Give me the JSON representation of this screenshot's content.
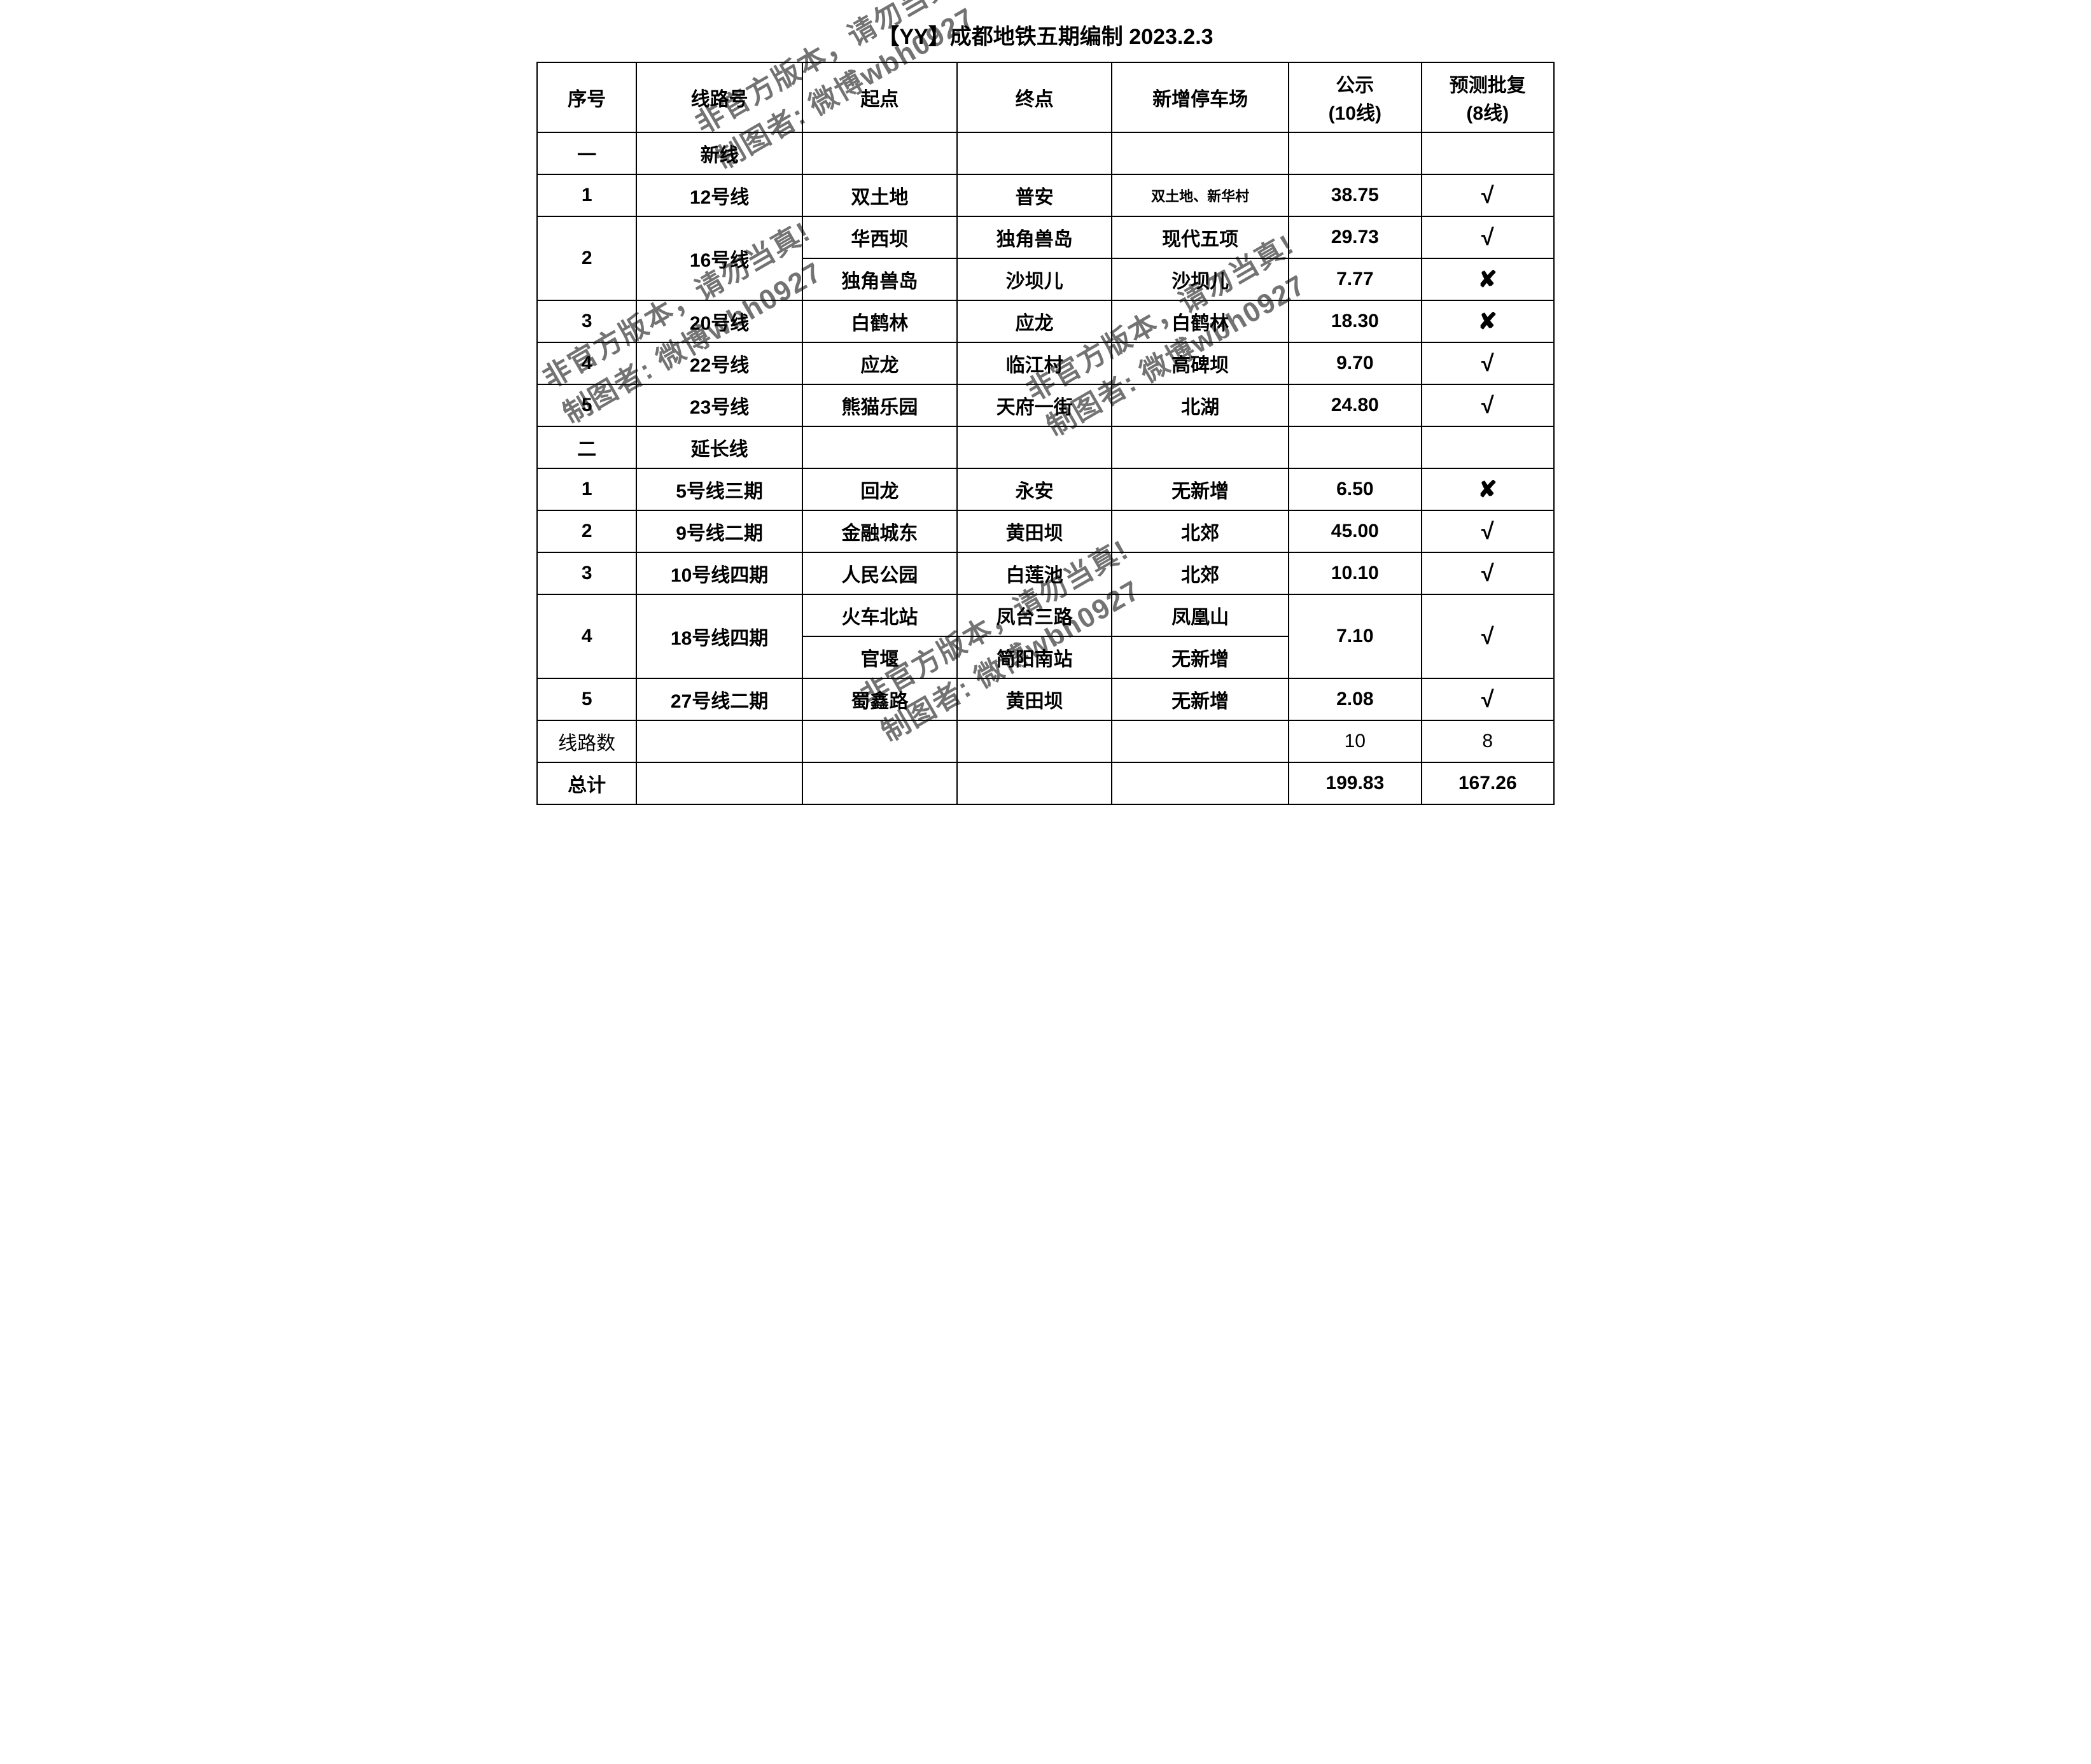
{
  "title": "【YY】成都地铁五期编制 2023.2.3",
  "columns": {
    "seq": "序号",
    "line": "线路号",
    "start": "起点",
    "end": "终点",
    "depot": "新增停车场",
    "public": "公示",
    "public_sub": "(10线)",
    "approve": "预测批复",
    "approve_sub": "(8线)"
  },
  "sections": {
    "one_seq": "一",
    "one_label": "新线",
    "two_seq": "二",
    "two_label": "延长线"
  },
  "rows_new": [
    {
      "seq": "1",
      "line": "12号线",
      "start": "双土地",
      "end": "普安",
      "depot": "双土地、新华村",
      "depot_small": true,
      "public": "38.75",
      "approve": "check"
    },
    {
      "seq": "2",
      "line": "16号线",
      "rowspan": 2,
      "start": "华西坝",
      "end": "独角兽岛",
      "depot": "现代五项",
      "public": "29.73",
      "approve": "check"
    },
    {
      "start": "独角兽岛",
      "end": "沙坝儿",
      "depot": "沙坝儿",
      "public": "7.77",
      "approve": "cross"
    },
    {
      "seq": "3",
      "line": "20号线",
      "start": "白鹤林",
      "end": "应龙",
      "depot": "白鹤林",
      "public": "18.30",
      "approve": "cross"
    },
    {
      "seq": "4",
      "line": "22号线",
      "start": "应龙",
      "end": "临江村",
      "depot": "高碑坝",
      "public": "9.70",
      "approve": "check"
    },
    {
      "seq": "5",
      "line": "23号线",
      "start": "熊猫乐园",
      "end": "天府一街",
      "depot": "北湖",
      "public": "24.80",
      "approve": "check"
    }
  ],
  "rows_ext": [
    {
      "seq": "1",
      "line": "5号线三期",
      "start": "回龙",
      "end": "永安",
      "depot": "无新增",
      "public": "6.50",
      "approve": "cross"
    },
    {
      "seq": "2",
      "line": "9号线二期",
      "start": "金融城东",
      "end": "黄田坝",
      "depot": "北郊",
      "public": "45.00",
      "approve": "check"
    },
    {
      "seq": "3",
      "line": "10号线四期",
      "start": "人民公园",
      "end": "白莲池",
      "depot": "北郊",
      "public": "10.10",
      "approve": "check"
    },
    {
      "seq": "4",
      "line": "18号线四期",
      "rowspan": 2,
      "start": "火车北站",
      "end": "凤台三路",
      "depot": "凤凰山",
      "public": "7.10",
      "public_rowspan": 2,
      "approve": "check",
      "approve_rowspan": 2
    },
    {
      "start": "官堰",
      "end": "简阳南站",
      "depot": "无新增"
    },
    {
      "seq": "5",
      "line": "27号线二期",
      "start": "蜀鑫路",
      "end": "黄田坝",
      "depot": "无新增",
      "public": "2.08",
      "approve": "check"
    }
  ],
  "summary": {
    "count_label": "线路数",
    "count_public": "10",
    "count_approve": "8",
    "total_label": "总计",
    "total_public": "199.83",
    "total_approve": "167.26"
  },
  "watermarks": {
    "line1": "非官方版本，请勿当真!",
    "line2": "制图者: 微博wbh0927"
  },
  "marks": {
    "check": "√",
    "cross": "✘"
  },
  "style": {
    "title_fontsize": 34,
    "cell_fontsize": 30,
    "border_color": "#000000",
    "background_color": "#ffffff",
    "text_color": "#000000",
    "watermark_color": "rgba(0,0,0,0.55)",
    "watermark_rotate_deg": -30
  }
}
